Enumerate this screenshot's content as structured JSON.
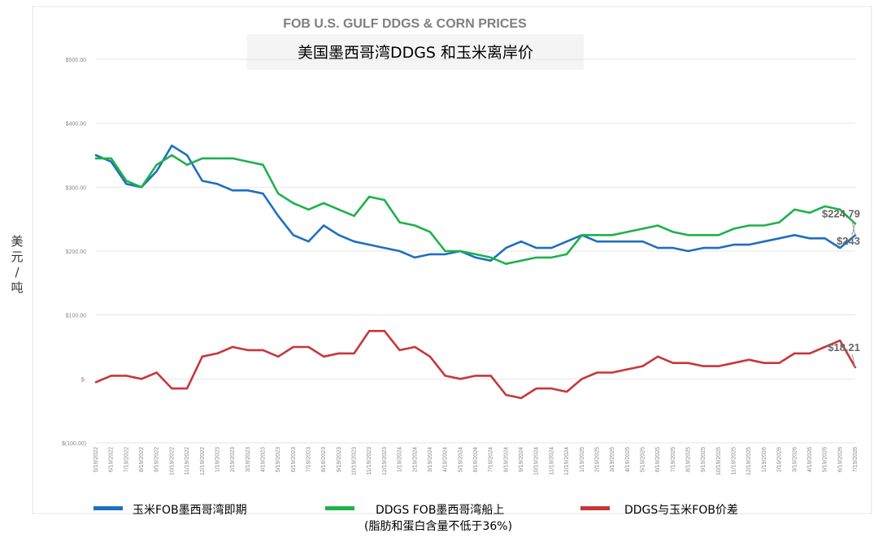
{
  "chart_data": {
    "type": "line",
    "title": "FOB U.S. GULF DDGS & CORN PRICES",
    "subtitle": "美国墨西哥湾DDGS 和玉米离岸价",
    "ylabel": "美元/吨",
    "ylim": [
      -100,
      500
    ],
    "y_ticks": [
      {
        "value": 500,
        "label": "$500.00"
      },
      {
        "value": 400,
        "label": "$400.00"
      },
      {
        "value": 300,
        "label": "$300.00"
      },
      {
        "value": 200,
        "label": "$200.00"
      },
      {
        "value": 100,
        "label": "$100.00"
      },
      {
        "value": 0,
        "label": "$-"
      },
      {
        "value": -100,
        "label": "$(100.00)"
      }
    ],
    "x": [
      "5/19/2022",
      "6/19/2022",
      "7/19/2022",
      "8/19/2022",
      "9/19/2022",
      "10/19/2022",
      "11/19/2022",
      "12/19/2022",
      "1/19/2023",
      "2/19/2023",
      "3/19/2023",
      "4/19/2023",
      "5/19/2023",
      "6/19/2023",
      "7/19/2023",
      "8/19/2023",
      "9/19/2023",
      "10/19/2023",
      "11/19/2023",
      "12/19/2023",
      "1/19/2024",
      "2/19/2024",
      "3/19/2024",
      "4/19/2024",
      "5/19/2024",
      "6/19/2024",
      "7/19/2024",
      "8/19/2024",
      "9/19/2024",
      "10/19/2024",
      "11/19/2024",
      "12/19/2024",
      "1/19/2025",
      "2/19/2025",
      "3/19/2025",
      "4/19/2025",
      "5/19/2025",
      "6/19/2025",
      "7/19/2025",
      "8/19/2025",
      "9/19/2025",
      "10/19/2025",
      "11/19/2025",
      "12/19/2025",
      "1/19/2026",
      "2/19/2026",
      "3/19/2026",
      "4/19/2026",
      "5/19/2026",
      "6/19/2026",
      "7/19/2026"
    ],
    "series": [
      {
        "name": "玉米FOB墨西哥湾即期",
        "color": "#1f6fbf",
        "values": [
          350,
          340,
          305,
          300,
          325,
          365,
          350,
          310,
          305,
          295,
          295,
          290,
          255,
          225,
          215,
          240,
          225,
          215,
          210,
          205,
          200,
          190,
          195,
          195,
          200,
          190,
          185,
          205,
          215,
          205,
          205,
          215,
          225,
          215,
          215,
          215,
          215,
          205,
          205,
          200,
          205,
          205,
          210,
          210,
          215,
          220,
          225,
          220,
          220,
          205,
          224.79
        ]
      },
      {
        "name": "DDGS FOB墨西哥湾船上\n(脂肪和蛋白含量不低于36%)",
        "color": "#1db24a",
        "values": [
          345,
          345,
          310,
          300,
          335,
          350,
          335,
          345,
          345,
          345,
          340,
          335,
          290,
          275,
          265,
          275,
          265,
          255,
          285,
          280,
          245,
          240,
          230,
          200,
          200,
          195,
          190,
          180,
          185,
          190,
          190,
          195,
          225,
          225,
          225,
          230,
          235,
          240,
          230,
          225,
          225,
          225,
          235,
          240,
          240,
          245,
          265,
          260,
          270,
          265,
          243
        ]
      },
      {
        "name": "DDGS与玉米FOB价差",
        "color": "#c8363a",
        "values": [
          -5,
          5,
          5,
          0,
          10,
          -15,
          -15,
          35,
          40,
          50,
          45,
          45,
          35,
          50,
          50,
          35,
          40,
          40,
          75,
          75,
          45,
          50,
          35,
          5,
          0,
          5,
          5,
          -25,
          -30,
          -15,
          -15,
          -20,
          0,
          10,
          10,
          15,
          20,
          35,
          25,
          25,
          20,
          20,
          25,
          30,
          25,
          25,
          40,
          40,
          50,
          60,
          18.21
        ]
      }
    ],
    "annotations": [
      {
        "text": "$243",
        "series": 1
      },
      {
        "text": "$224.79",
        "series": 0
      },
      {
        "text": "$18.21",
        "series": 2
      }
    ],
    "grid": true,
    "legend_position": "bottom"
  }
}
